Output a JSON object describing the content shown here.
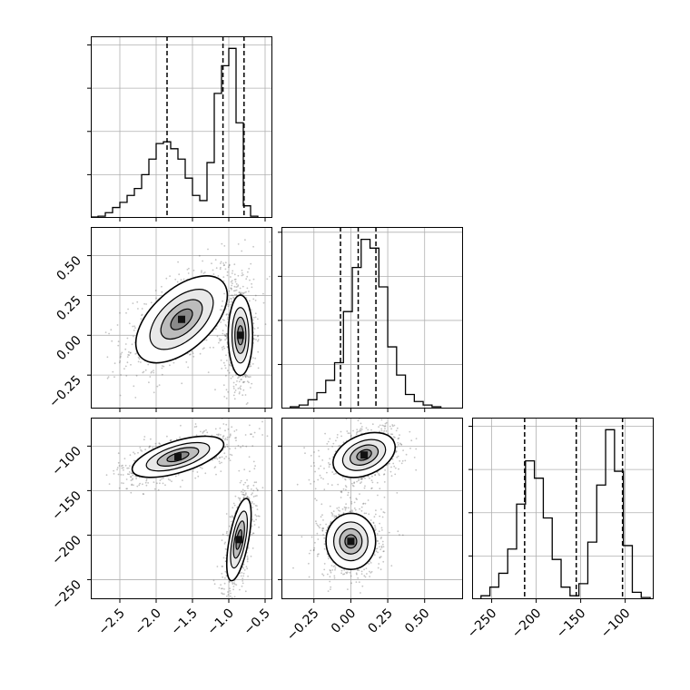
{
  "chart_data": {
    "type": "corner",
    "title": "",
    "grid": true,
    "parameters": [
      {
        "xlim": [
          -2.9,
          -0.4
        ],
        "ticks": [
          -2.5,
          -2.0,
          -1.5,
          -1.0,
          -0.5
        ],
        "tick_labels": [
          "−2.5",
          "−2.0",
          "−1.5",
          "−1.0",
          "−0.5"
        ],
        "quantiles": [
          -1.85,
          -1.08,
          -0.79
        ]
      },
      {
        "xlim": [
          -0.47,
          0.76
        ],
        "ticks": [
          -0.25,
          0.0,
          0.25,
          0.5
        ],
        "tick_labels": [
          "−0.25",
          "0.00",
          "0.25",
          "0.50"
        ],
        "quantiles": [
          -0.07,
          0.05,
          0.17
        ]
      },
      {
        "xlim": [
          -272,
          -68
        ],
        "ticks": [
          -250,
          -200,
          -150,
          -100
        ],
        "tick_labels": [
          "−250",
          "−200",
          "−150",
          "−100"
        ],
        "quantiles": [
          -213,
          -155,
          -103
        ]
      }
    ],
    "histograms": [
      {
        "param": 0,
        "bins": [
          -2.9,
          -2.8,
          -2.7,
          -2.6,
          -2.5,
          -2.4,
          -2.3,
          -2.2,
          -2.1,
          -2.0,
          -1.9,
          -1.8,
          -1.7,
          -1.6,
          -1.5,
          -1.4,
          -1.3,
          -1.2,
          -1.1,
          -1.0,
          -0.9,
          -0.8,
          -0.7,
          -0.6,
          -0.5,
          -0.4
        ],
        "counts": [
          0.005,
          0.01,
          0.03,
          0.06,
          0.09,
          0.13,
          0.17,
          0.25,
          0.34,
          0.43,
          0.44,
          0.4,
          0.34,
          0.23,
          0.13,
          0.1,
          0.32,
          0.72,
          0.88,
          0.98,
          0.55,
          0.07,
          0.01,
          0.0,
          0.0
        ],
        "ymax": 1.05,
        "yticks": [
          0.25,
          0.5,
          0.75,
          1.0
        ]
      },
      {
        "param": 1,
        "bins": [
          -0.47,
          -0.41,
          -0.35,
          -0.29,
          -0.23,
          -0.17,
          -0.11,
          -0.05,
          0.01,
          0.07,
          0.13,
          0.19,
          0.25,
          0.31,
          0.37,
          0.43,
          0.49,
          0.55,
          0.61,
          0.67,
          0.76
        ],
        "counts": [
          0.0,
          0.01,
          0.02,
          0.05,
          0.09,
          0.16,
          0.26,
          0.55,
          0.8,
          0.96,
          0.91,
          0.69,
          0.35,
          0.19,
          0.08,
          0.04,
          0.02,
          0.01,
          0.0,
          0.0
        ],
        "ymax": 1.03,
        "yticks": [
          0.25,
          0.5,
          0.75,
          1.0
        ]
      },
      {
        "param": 2,
        "bins": [
          -272,
          -262,
          -252,
          -242,
          -232,
          -222,
          -212,
          -202,
          -192,
          -182,
          -172,
          -162,
          -152,
          -142,
          -132,
          -122,
          -112,
          -102,
          -92,
          -82,
          -72,
          -68
        ],
        "counts": [
          0.0,
          0.02,
          0.07,
          0.15,
          0.29,
          0.55,
          0.8,
          0.7,
          0.47,
          0.23,
          0.07,
          0.02,
          0.09,
          0.33,
          0.66,
          0.98,
          0.74,
          0.31,
          0.04,
          0.01,
          0.0
        ],
        "ymax": 1.05,
        "yticks": [
          0.25,
          0.5,
          0.75,
          1.0
        ]
      }
    ],
    "panels_2d": [
      {
        "x_param": 0,
        "y_param": 1,
        "ylim": [
          -0.46,
          0.68
        ],
        "yticks": [
          -0.25,
          0.0,
          0.25,
          0.5
        ],
        "ytick_labels": [
          "−0.25",
          "0.00",
          "0.25",
          "0.50"
        ],
        "modes": [
          {
            "cx": -1.65,
            "cy": 0.1,
            "sx": 0.3,
            "sy": 0.13,
            "rho": 0.55,
            "weight": 0.5
          },
          {
            "cx": -0.84,
            "cy": 0.0,
            "sx": 0.08,
            "sy": 0.12,
            "rho": 0.0,
            "weight": 0.5
          }
        ]
      },
      {
        "x_param": 0,
        "y_param": 2,
        "ylim": [
          -272,
          -68
        ],
        "yticks": [
          -250,
          -200,
          -150,
          -100
        ],
        "ytick_labels": [
          "−250",
          "−200",
          "−150",
          "−100"
        ],
        "modes": [
          {
            "cx": -1.7,
            "cy": -112,
            "sx": 0.3,
            "sy": 11,
            "rho": 0.6,
            "weight": 0.5
          },
          {
            "cx": -0.86,
            "cy": -205,
            "sx": 0.08,
            "sy": 22,
            "rho": 0.6,
            "weight": 0.5
          }
        ]
      },
      {
        "x_param": 1,
        "y_param": 2,
        "ylim": [
          -272,
          -68
        ],
        "yticks": [
          -250,
          -200,
          -150,
          -100
        ],
        "ytick_labels": [],
        "modes": [
          {
            "cx": 0.09,
            "cy": -110,
            "sx": 0.1,
            "sy": 12,
            "rho": 0.35,
            "weight": 0.5
          },
          {
            "cx": 0.0,
            "cy": -207,
            "sx": 0.08,
            "sy": 15,
            "rho": 0.0,
            "weight": 0.5
          }
        ]
      }
    ]
  }
}
